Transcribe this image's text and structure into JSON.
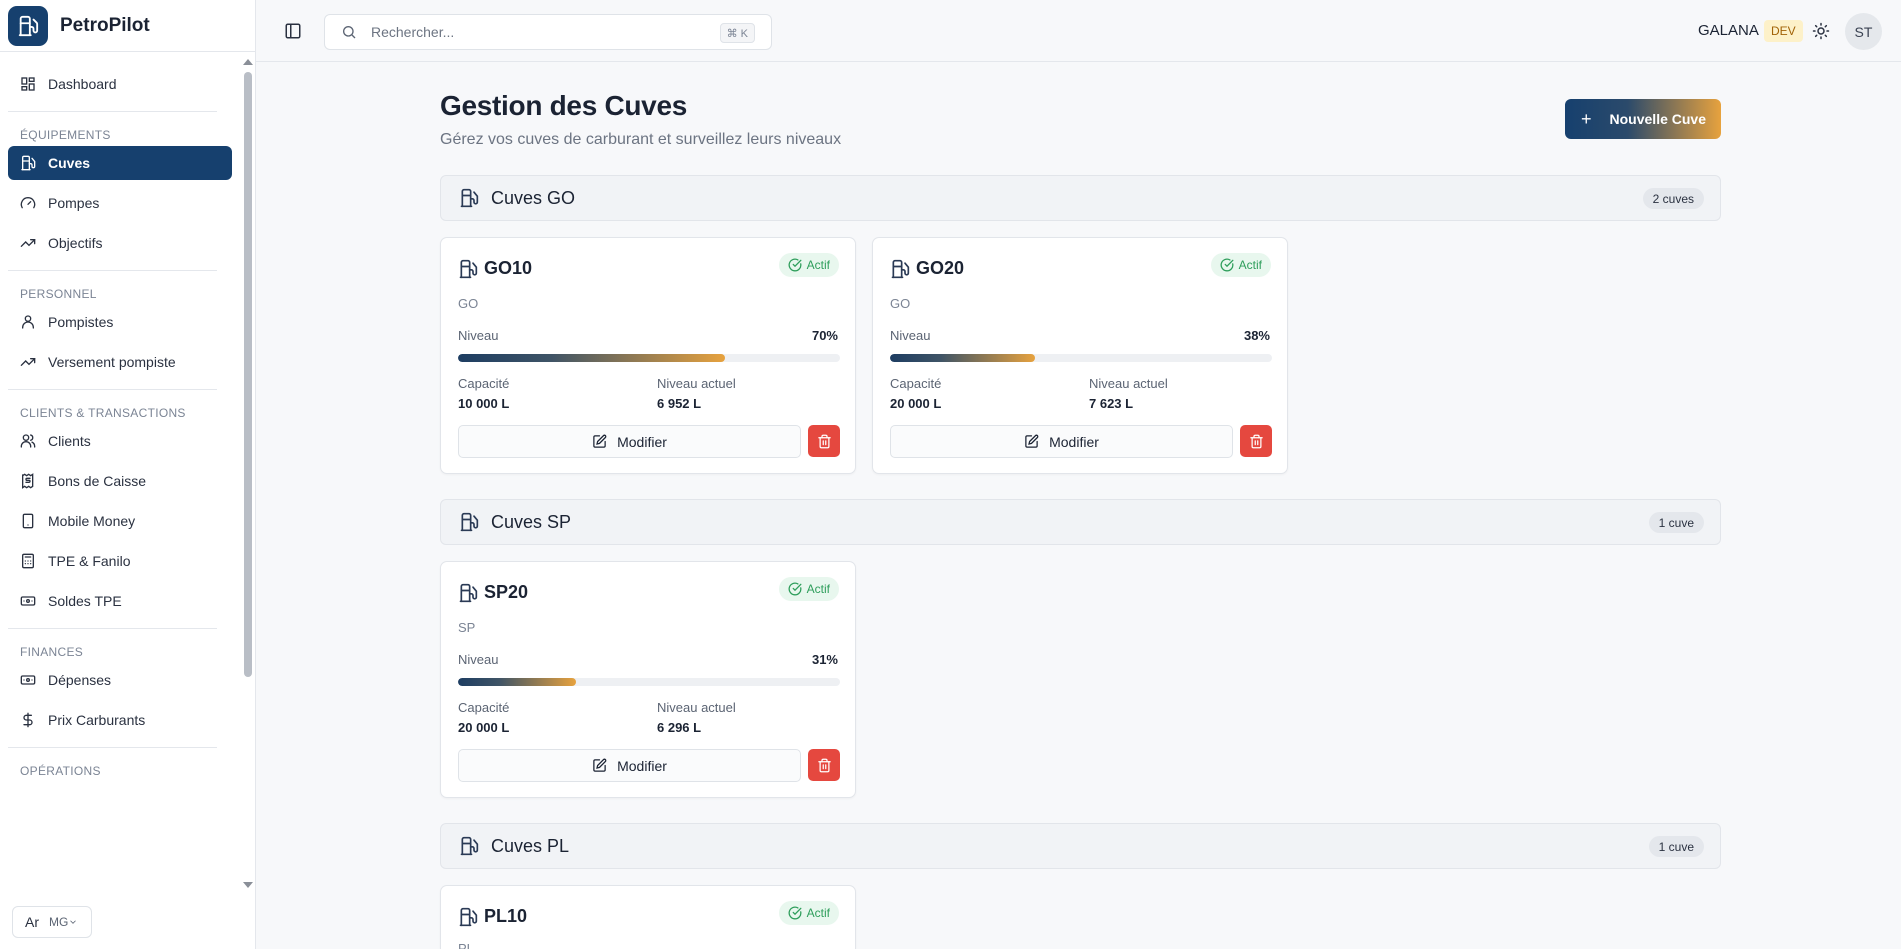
{
  "app": {
    "name": "PetroPilot"
  },
  "sidebar": {
    "dashboard": "Dashboard",
    "sections": {
      "equipements": "ÉQUIPEMENTS",
      "personnel": "PERSONNEL",
      "clients": "CLIENTS & TRANSACTIONS",
      "finances": "FINANCES",
      "operations": "OPÉRATIONS"
    },
    "items": {
      "cuves": "Cuves",
      "pompes": "Pompes",
      "objectifs": "Objectifs",
      "pompistes": "Pompistes",
      "versement": "Versement pompiste",
      "clients": "Clients",
      "bons": "Bons de Caisse",
      "mobile": "Mobile Money",
      "tpe": "TPE & Fanilo",
      "soldes": "Soldes TPE",
      "depenses": "Dépenses",
      "prix": "Prix Carburants"
    },
    "currency": {
      "symbol": "Ar",
      "code": "MG"
    }
  },
  "topbar": {
    "search_placeholder": "Rechercher...",
    "shortcut": "⌘ K",
    "org": "GALANA",
    "env": "DEV",
    "avatar": "ST"
  },
  "page": {
    "title": "Gestion des Cuves",
    "subtitle": "Gérez vos cuves de carburant et surveillez leurs niveaux",
    "new_button": "Nouvelle Cuve"
  },
  "labels": {
    "status": "Actif",
    "level": "Niveau",
    "capacity": "Capacité",
    "current_level": "Niveau actuel",
    "edit": "Modifier"
  },
  "groups": [
    {
      "title": "Cuves GO",
      "count": "2 cuves",
      "tanks": [
        {
          "name": "GO10",
          "fuel": "GO",
          "level_pct": "70%",
          "level": 70,
          "capacity": "10 000 L",
          "current": "6 952 L"
        },
        {
          "name": "GO20",
          "fuel": "GO",
          "level_pct": "38%",
          "level": 38,
          "capacity": "20 000 L",
          "current": "7 623 L"
        }
      ]
    },
    {
      "title": "Cuves SP",
      "count": "1 cuve",
      "tanks": [
        {
          "name": "SP20",
          "fuel": "SP",
          "level_pct": "31%",
          "level": 31,
          "capacity": "20 000 L",
          "current": "6 296 L"
        }
      ]
    },
    {
      "title": "Cuves PL",
      "count": "1 cuve",
      "tanks": [
        {
          "name": "PL10",
          "fuel": "PL"
        }
      ]
    }
  ],
  "colors": {
    "primary": "#16406e",
    "accent": "#e7a23e",
    "danger": "#e5483f",
    "success": "#2e9e5b"
  }
}
